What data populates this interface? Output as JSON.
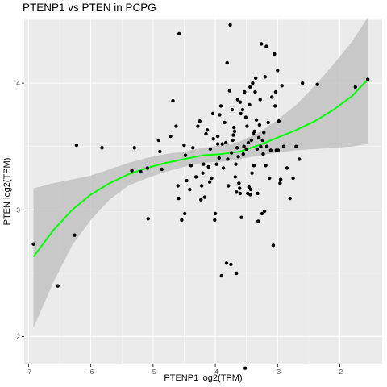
{
  "chart_data": {
    "type": "scatter",
    "title": "PTENP1 vs  PTEN in PCPG",
    "xlabel": "PTENP1 log2(TPM)",
    "ylabel": "PTEN log2(TPM)",
    "xlim": [
      -7.07,
      -1.32
    ],
    "ylim": [
      1.78,
      4.51
    ],
    "xticks": [
      -7,
      -6,
      -5,
      -4,
      -3,
      -2
    ],
    "yticks": [
      2,
      3,
      4
    ],
    "grid": true,
    "colors": {
      "panel": "#ebebeb",
      "grid_major": "#ffffff",
      "points": "#000000",
      "trend": "#00ff00",
      "band": "#c2c2c2"
    },
    "points": [
      [
        -6.92,
        2.73
      ],
      [
        -6.53,
        2.4
      ],
      [
        -6.26,
        2.8
      ],
      [
        -6.23,
        3.51
      ],
      [
        -5.82,
        3.49
      ],
      [
        -5.34,
        3.31
      ],
      [
        -5.3,
        3.49
      ],
      [
        -5.2,
        3.3
      ],
      [
        -5.09,
        3.33
      ],
      [
        -5.08,
        2.93
      ],
      [
        -4.91,
        3.55
      ],
      [
        -4.89,
        3.46
      ],
      [
        -4.86,
        3.32
      ],
      [
        -4.72,
        3.58
      ],
      [
        -4.68,
        3.86
      ],
      [
        -4.63,
        3.66
      ],
      [
        -4.6,
        3.19
      ],
      [
        -4.59,
        3.09
      ],
      [
        -4.58,
        4.39
      ],
      [
        -4.54,
        2.92
      ],
      [
        -4.49,
        2.97
      ],
      [
        -4.5,
        3.51
      ],
      [
        -4.48,
        3.43
      ],
      [
        -4.46,
        3.23
      ],
      [
        -4.41,
        3.16
      ],
      [
        -4.39,
        3.35
      ],
      [
        -4.36,
        3.49
      ],
      [
        -4.31,
        3.26
      ],
      [
        -4.28,
        3.66
      ],
      [
        -4.25,
        3.7
      ],
      [
        -4.23,
        3.08
      ],
      [
        -4.22,
        3.19
      ],
      [
        -4.2,
        3.29
      ],
      [
        -4.19,
        3.36
      ],
      [
        -4.17,
        3.1
      ],
      [
        -4.15,
        3.6
      ],
      [
        -4.13,
        3.63
      ],
      [
        -4.11,
        3.34
      ],
      [
        -4.09,
        3.22
      ],
      [
        -4.06,
        3.25
      ],
      [
        -4.04,
        3.76
      ],
      [
        -4.03,
        3.56
      ],
      [
        -4.01,
        2.92
      ],
      [
        -4.0,
        2.97
      ],
      [
        -3.98,
        3.36
      ],
      [
        -3.96,
        3.58
      ],
      [
        -3.94,
        3.41
      ],
      [
        -3.93,
        3.75
      ],
      [
        -3.91,
        3.82
      ],
      [
        -3.89,
        3.52
      ],
      [
        -3.87,
        3.33
      ],
      [
        -3.85,
        3.69
      ],
      [
        -3.83,
        3.53
      ],
      [
        -3.81,
        4.16
      ],
      [
        -3.8,
        3.4
      ],
      [
        -3.79,
        3.19
      ],
      [
        -3.77,
        3.94
      ],
      [
        -3.76,
        4.46
      ],
      [
        -3.75,
        2.57
      ],
      [
        -3.74,
        3.45
      ],
      [
        -3.73,
        3.79
      ],
      [
        -3.72,
        3.55
      ],
      [
        -3.71,
        3.59
      ],
      [
        -3.7,
        3.65
      ],
      [
        -3.69,
        3.62
      ],
      [
        -3.68,
        3.26
      ],
      [
        -3.67,
        3.36
      ],
      [
        -3.66,
        3.14
      ],
      [
        -3.65,
        3.49
      ],
      [
        -3.64,
        3.87
      ],
      [
        -3.63,
        3.42
      ],
      [
        -3.62,
        3.21
      ],
      [
        -3.61,
        3.17
      ],
      [
        -3.6,
        3.85
      ],
      [
        -3.59,
        3.76
      ],
      [
        -3.58,
        2.94
      ],
      [
        -3.56,
        3.79
      ],
      [
        -3.55,
        3.44
      ],
      [
        -3.54,
        3.5
      ],
      [
        -3.53,
        3.93
      ],
      [
        -3.52,
        1.75
      ],
      [
        -3.51,
        3.73
      ],
      [
        -3.5,
        3.48
      ],
      [
        -3.49,
        3.66
      ],
      [
        -3.48,
        3.13
      ],
      [
        -3.47,
        3.53
      ],
      [
        -3.46,
        3.18
      ],
      [
        -3.45,
        3.83
      ],
      [
        -3.44,
        3.97
      ],
      [
        -3.43,
        3.16
      ],
      [
        -3.42,
        3.55
      ],
      [
        -3.41,
        3.29
      ],
      [
        -3.4,
        4.0
      ],
      [
        -3.39,
        3.6
      ],
      [
        -3.38,
        3.35
      ],
      [
        -3.37,
        3.62
      ],
      [
        -3.36,
        3.93
      ],
      [
        -3.35,
        4.04
      ],
      [
        -3.34,
        3.71
      ],
      [
        -3.33,
        3.48
      ],
      [
        -3.32,
        3.13
      ],
      [
        -3.31,
        2.91
      ],
      [
        -3.3,
        3.57
      ],
      [
        -3.29,
        3.67
      ],
      [
        -3.28,
        3.87
      ],
      [
        -3.27,
        3.5
      ],
      [
        -3.26,
        4.31
      ],
      [
        -3.25,
        2.97
      ],
      [
        -3.24,
        3.55
      ],
      [
        -3.23,
        3.44
      ],
      [
        -3.22,
        3.61
      ],
      [
        -3.21,
        2.99
      ],
      [
        -3.2,
        4.05
      ],
      [
        -3.19,
        3.35
      ],
      [
        -3.18,
        4.29
      ],
      [
        -3.17,
        3.5
      ],
      [
        -3.15,
        3.69
      ],
      [
        -3.13,
        3.25
      ],
      [
        -3.11,
        3.47
      ],
      [
        -3.09,
        3.89
      ],
      [
        -3.07,
        2.72
      ],
      [
        -3.05,
        4.23
      ],
      [
        -3.04,
        3.82
      ],
      [
        -3.03,
        3.93
      ],
      [
        -3.02,
        3.47
      ],
      [
        -3.0,
        4.1
      ],
      [
        -2.99,
        3.47
      ],
      [
        -2.98,
        3.7
      ],
      [
        -2.96,
        3.21
      ],
      [
        -2.95,
        3.24
      ],
      [
        -2.93,
        3.98
      ],
      [
        -2.9,
        3.5
      ],
      [
        -2.85,
        3.33
      ],
      [
        -2.8,
        3.09
      ],
      [
        -2.75,
        3.25
      ],
      [
        -2.7,
        3.5
      ],
      [
        -2.65,
        3.4
      ],
      [
        -2.6,
        4.0
      ],
      [
        -2.36,
        3.99
      ],
      [
        -1.75,
        3.97
      ],
      [
        -1.55,
        4.03
      ],
      [
        -3.82,
        2.58
      ],
      [
        -3.66,
        2.5
      ],
      [
        -3.9,
        2.48
      ],
      [
        -3.6,
        3.13
      ],
      [
        -3.44,
        3.12
      ],
      [
        -3.96,
        3.52
      ],
      [
        -4.08,
        3.48
      ]
    ],
    "trend": [
      [
        -6.92,
        2.63
      ],
      [
        -6.6,
        2.84
      ],
      [
        -6.3,
        3.0
      ],
      [
        -6.0,
        3.12
      ],
      [
        -5.7,
        3.21
      ],
      [
        -5.4,
        3.28
      ],
      [
        -5.1,
        3.33
      ],
      [
        -4.8,
        3.37
      ],
      [
        -4.5,
        3.4
      ],
      [
        -4.2,
        3.43
      ],
      [
        -3.9,
        3.44
      ],
      [
        -3.6,
        3.46
      ],
      [
        -3.3,
        3.51
      ],
      [
        -3.0,
        3.57
      ],
      [
        -2.7,
        3.63
      ],
      [
        -2.4,
        3.7
      ],
      [
        -2.1,
        3.79
      ],
      [
        -1.8,
        3.9
      ],
      [
        -1.55,
        4.03
      ]
    ],
    "band_upper": [
      [
        -6.92,
        3.17
      ],
      [
        -6.6,
        3.21
      ],
      [
        -6.3,
        3.24
      ],
      [
        -6.0,
        3.27
      ],
      [
        -5.7,
        3.32
      ],
      [
        -5.4,
        3.37
      ],
      [
        -5.1,
        3.41
      ],
      [
        -4.8,
        3.44
      ],
      [
        -4.5,
        3.46
      ],
      [
        -4.2,
        3.49
      ],
      [
        -3.9,
        3.51
      ],
      [
        -3.6,
        3.54
      ],
      [
        -3.3,
        3.61
      ],
      [
        -3.0,
        3.71
      ],
      [
        -2.7,
        3.83
      ],
      [
        -2.4,
        3.98
      ],
      [
        -2.1,
        4.15
      ],
      [
        -1.8,
        4.33
      ],
      [
        -1.55,
        4.52
      ]
    ],
    "band_lower": [
      [
        -6.92,
        2.07
      ],
      [
        -6.6,
        2.43
      ],
      [
        -6.3,
        2.72
      ],
      [
        -6.0,
        2.92
      ],
      [
        -5.7,
        3.08
      ],
      [
        -5.4,
        3.19
      ],
      [
        -5.1,
        3.25
      ],
      [
        -4.8,
        3.3
      ],
      [
        -4.5,
        3.34
      ],
      [
        -4.2,
        3.37
      ],
      [
        -3.9,
        3.38
      ],
      [
        -3.6,
        3.4
      ],
      [
        -3.3,
        3.43
      ],
      [
        -3.0,
        3.45
      ],
      [
        -2.7,
        3.47
      ],
      [
        -2.4,
        3.48
      ],
      [
        -2.1,
        3.49
      ],
      [
        -1.8,
        3.5
      ],
      [
        -1.55,
        3.52
      ]
    ]
  }
}
